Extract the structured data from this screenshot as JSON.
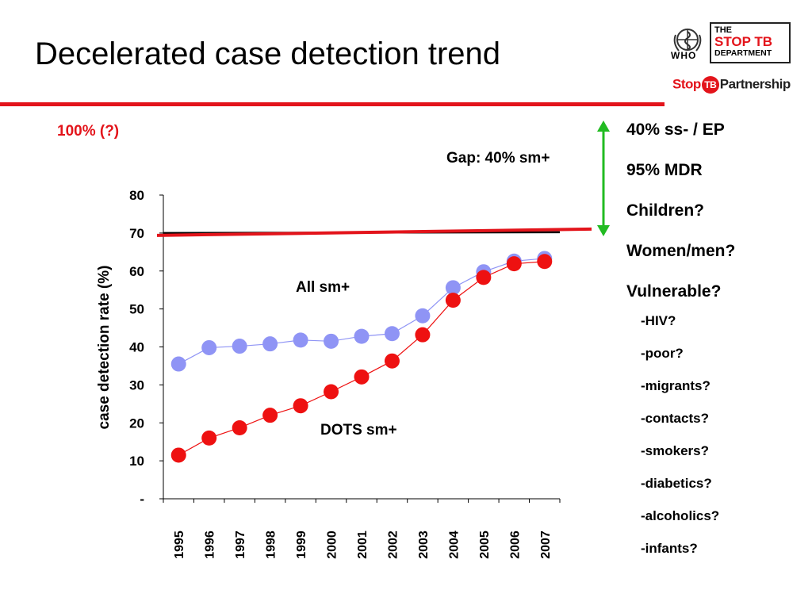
{
  "slide": {
    "title": "Decelerated case detection trend"
  },
  "logos": {
    "who": "WHO",
    "stoptb_line1": "THE",
    "stoptb_line2": "STOP TB",
    "stoptb_line3": "DEPARTMENT",
    "partnership_a": "Stop",
    "partnership_b": "TB",
    "partnership_c": "Partnership"
  },
  "annotations": {
    "target_label": "100% (?)",
    "gap_label": "Gap: 40% sm+",
    "all_label": "All sm+",
    "dots_label": "DOTS sm+"
  },
  "right_list": {
    "main": [
      "40% ss- / EP",
      "95% MDR",
      "Children?",
      "Women/men?",
      "Vulnerable?"
    ],
    "sub": [
      "-HIV?",
      "-poor?",
      "-migrants?",
      "-contacts?",
      "-smokers?",
      "-diabetics?",
      "-alcoholics?",
      "-infants?"
    ]
  },
  "colors": {
    "accent_red": "#e3141b",
    "all_series": "#8f94f5",
    "dots_series": "#ee1111",
    "gap_arrow": "#22bb22"
  },
  "chart_data": {
    "type": "line",
    "ylabel": "case detection rate (%)",
    "xlabel": "",
    "categories": [
      "1995",
      "1996",
      "1997",
      "1998",
      "1999",
      "2000",
      "2001",
      "2002",
      "2003",
      "2004",
      "2005",
      "2006",
      "2007"
    ],
    "ylim": [
      0,
      80
    ],
    "yticks": [
      "-",
      "10",
      "20",
      "30",
      "40",
      "50",
      "60",
      "70",
      "80"
    ],
    "series": [
      {
        "name": "All sm+",
        "values": [
          35.5,
          39.8,
          40.2,
          40.8,
          41.8,
          41.5,
          42.8,
          43.5,
          48.2,
          55.6,
          59.8,
          62.6,
          63.3
        ]
      },
      {
        "name": "DOTS sm+",
        "values": [
          11.5,
          16.0,
          18.7,
          22.0,
          24.5,
          28.2,
          32.1,
          36.3,
          43.2,
          52.3,
          58.3,
          61.9,
          62.5
        ]
      }
    ],
    "target_line": {
      "value": 70
    },
    "grid": false
  }
}
